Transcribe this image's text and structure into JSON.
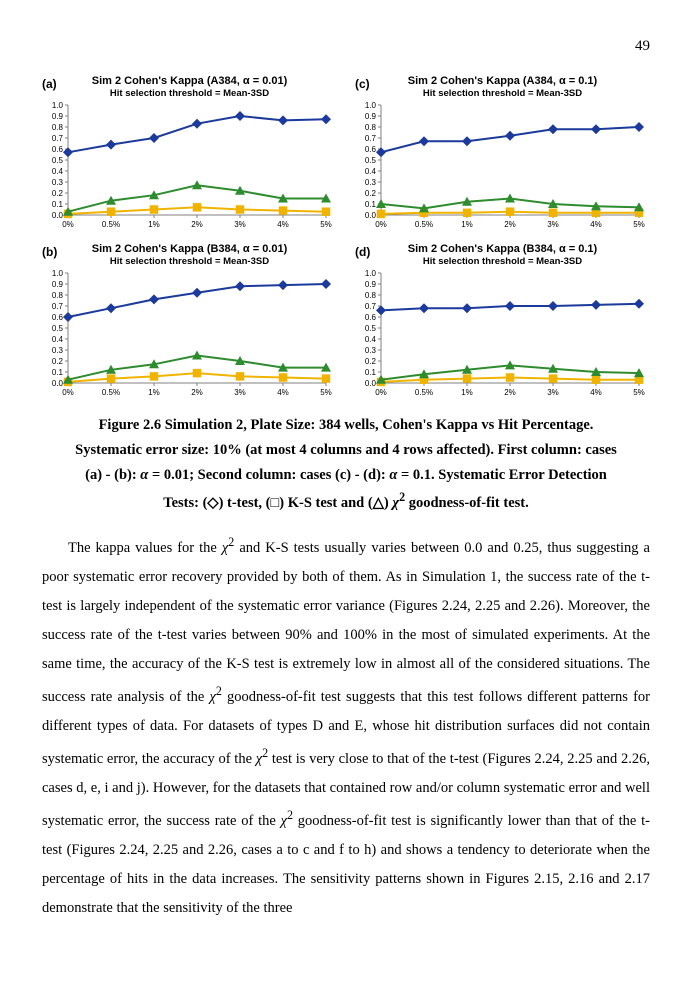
{
  "page_number": "49",
  "x_categories": [
    "0%",
    "0.5%",
    "1%",
    "2%",
    "3%",
    "4%",
    "5%"
  ],
  "ylim": [
    0,
    1.0
  ],
  "ytick_step": 0.1,
  "colors": {
    "ttest": "#1b3a9c",
    "ks": "#f0b400",
    "chi": "#2e8b2e",
    "axis": "#808080",
    "grid": "#c0c0c0",
    "bg": "#ffffff"
  },
  "marker": {
    "ttest": "diamond",
    "ks": "square",
    "chi": "triangle"
  },
  "line_width": 2,
  "marker_size": 5,
  "panels": {
    "a": {
      "label": "(a)",
      "title": "Sim 2 Cohen's Kappa (A384, α = 0.01)",
      "subtitle": "Hit selection threshold = Mean-3SD",
      "series": {
        "ttest": [
          0.57,
          0.64,
          0.7,
          0.83,
          0.9,
          0.86,
          0.87
        ],
        "ks": [
          0.01,
          0.03,
          0.05,
          0.07,
          0.05,
          0.04,
          0.03
        ],
        "chi": [
          0.03,
          0.13,
          0.18,
          0.27,
          0.22,
          0.15,
          0.15
        ]
      }
    },
    "b": {
      "label": "(b)",
      "title": "Sim 2 Cohen's Kappa (B384, α = 0.01)",
      "subtitle": "Hit selection threshold = Mean-3SD",
      "series": {
        "ttest": [
          0.6,
          0.68,
          0.76,
          0.82,
          0.88,
          0.89,
          0.9
        ],
        "ks": [
          0.01,
          0.04,
          0.06,
          0.09,
          0.06,
          0.05,
          0.04
        ],
        "chi": [
          0.03,
          0.12,
          0.17,
          0.25,
          0.2,
          0.14,
          0.14
        ]
      }
    },
    "c": {
      "label": "(c)",
      "title": "Sim 2 Cohen's Kappa (A384, α = 0.1)",
      "subtitle": "Hit selection threshold = Mean-3SD",
      "series": {
        "ttest": [
          0.57,
          0.67,
          0.67,
          0.72,
          0.78,
          0.78,
          0.8
        ],
        "ks": [
          0.01,
          0.02,
          0.02,
          0.03,
          0.02,
          0.02,
          0.02
        ],
        "chi": [
          0.1,
          0.06,
          0.12,
          0.15,
          0.1,
          0.08,
          0.07
        ]
      }
    },
    "d": {
      "label": "(d)",
      "title": "Sim 2 Cohen's Kappa (B384, α = 0.1)",
      "subtitle": "Hit selection threshold = Mean-3SD",
      "series": {
        "ttest": [
          0.66,
          0.68,
          0.68,
          0.7,
          0.7,
          0.71,
          0.72
        ],
        "ks": [
          0.01,
          0.03,
          0.04,
          0.05,
          0.04,
          0.03,
          0.03
        ],
        "chi": [
          0.03,
          0.08,
          0.12,
          0.16,
          0.13,
          0.1,
          0.09
        ]
      }
    }
  },
  "caption": {
    "l1": "Figure 2.6 Simulation 2, Plate Size: 384 wells, Cohen's Kappa vs Hit Percentage.",
    "l2": "Systematic error size: 10% (at most 4 columns and 4 rows affected). First column: cases",
    "l3_a": "(a) - (b): ",
    "l3_b": "α",
    "l3_c": " = 0.01; Second column: cases (c) - (d): ",
    "l3_d": "α",
    "l3_e": " = 0.1. Systematic Error Detection",
    "l4_a": "Tests: (◇) t-test, (□) K-S test and (△) ",
    "l4_b": "χ",
    "l4_c": "2",
    "l4_d": " goodness-of-fit test."
  },
  "body": {
    "p1_a": "The kappa values for the ",
    "p1_b": "χ",
    "p1_c": "2",
    "p1_d": " and K-S tests usually varies between 0.0 and 0.25, thus suggesting a poor systematic error recovery provided by both of them. As in Simulation 1, the success rate of the t-test is largely independent of the systematic error variance (Figures 2.24, 2.25 and 2.26). Moreover, the success rate of the t-test varies between 90% and 100% in the most of simulated experiments. At the same time, the accuracy of the K-S test is extremely low in almost all of the considered situations. The success rate analysis of the ",
    "p1_e": "χ",
    "p1_f": "2",
    "p1_g": " goodness-of-fit test suggests that this test follows different patterns for different types of data. For datasets of types D and E, whose hit distribution surfaces did not contain systematic error, the accuracy of the ",
    "p1_h": "χ",
    "p1_i": "2",
    "p1_j": " test is very close to that of the t-test (Figures 2.24, 2.25 and 2.26, cases d, e, i and j). However, for the datasets that contained row and/or column systematic error and well systematic error, the success rate of the ",
    "p1_k": "χ",
    "p1_l": "2",
    "p1_m": " goodness-of-fit test is significantly lower than that of the t-test (Figures 2.24, 2.25 and 2.26, cases a to c and f to h) and shows a tendency to deteriorate when the percentage of hits in the data increases. The sensitivity patterns shown in Figures 2.15, 2.16 and 2.17 demonstrate that the sensitivity of the three"
  }
}
